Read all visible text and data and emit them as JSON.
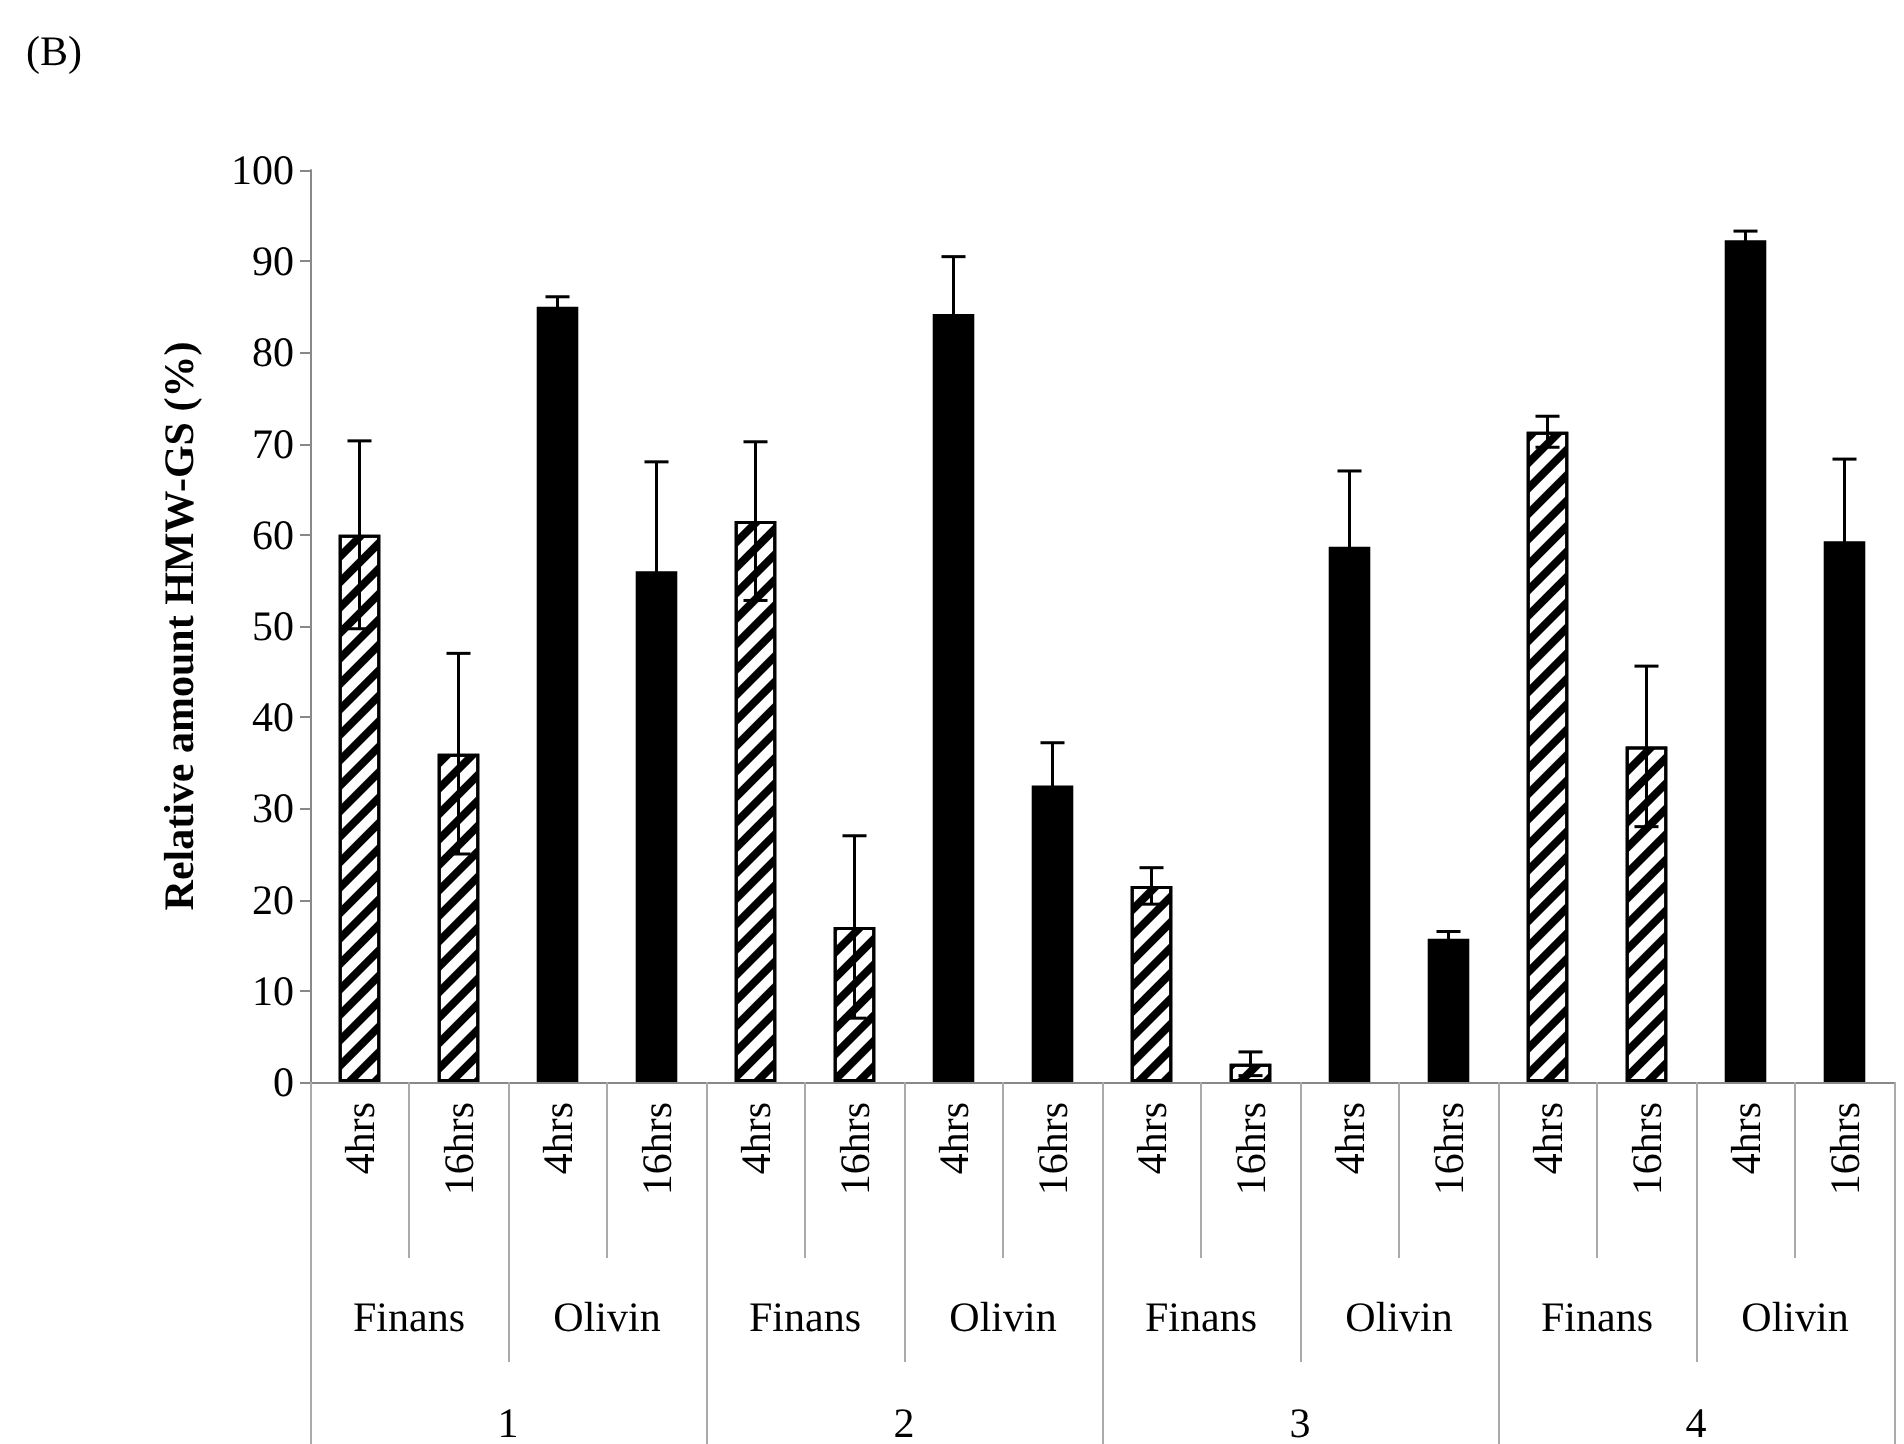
{
  "chart_data": {
    "type": "bar",
    "ylabel": "Relative amount HMW-GS (%)",
    "categories": [
      "4hrs",
      "16hrs",
      "4hrs",
      "16hrs",
      "4hrs",
      "16hrs",
      "4hrs",
      "16hrs",
      "4hrs",
      "16hrs",
      "4hrs",
      "16hrs",
      "4hrs",
      "16hrs",
      "4hrs",
      "16hrs"
    ],
    "values": [
      60,
      36,
      85,
      56,
      61.5,
      17,
      84.2,
      32.5,
      21.5,
      2,
      58.7,
      15.7,
      71.3,
      36.8,
      92.3,
      59.3
    ],
    "errors": [
      10.3,
      11,
      1.1,
      12,
      8.7,
      10,
      6.3,
      4.7,
      2,
      1.3,
      8.3,
      0.8,
      1.7,
      8.8,
      1,
      9
    ],
    "colors": [
      "#ffffff",
      "#ffffff",
      "#000000",
      "#000000",
      "#ffffff",
      "#ffffff",
      "#000000",
      "#000000",
      "#ffffff",
      "#ffffff",
      "#000000",
      "#000000",
      "#ffffff",
      "#ffffff",
      "#000000",
      "#000000"
    ],
    "ylim": [
      0,
      100
    ],
    "yticks": [
      0,
      10,
      20,
      30,
      40,
      50,
      60,
      70,
      80,
      90,
      100
    ],
    "grid": false,
    "annotations": [
      "(B)",
      "Finans",
      "Olivin",
      "Finans",
      "Olivin",
      "Finans",
      "Olivin",
      "Finans",
      "Olivin",
      "1",
      "2",
      "3",
      "4"
    ]
  }
}
